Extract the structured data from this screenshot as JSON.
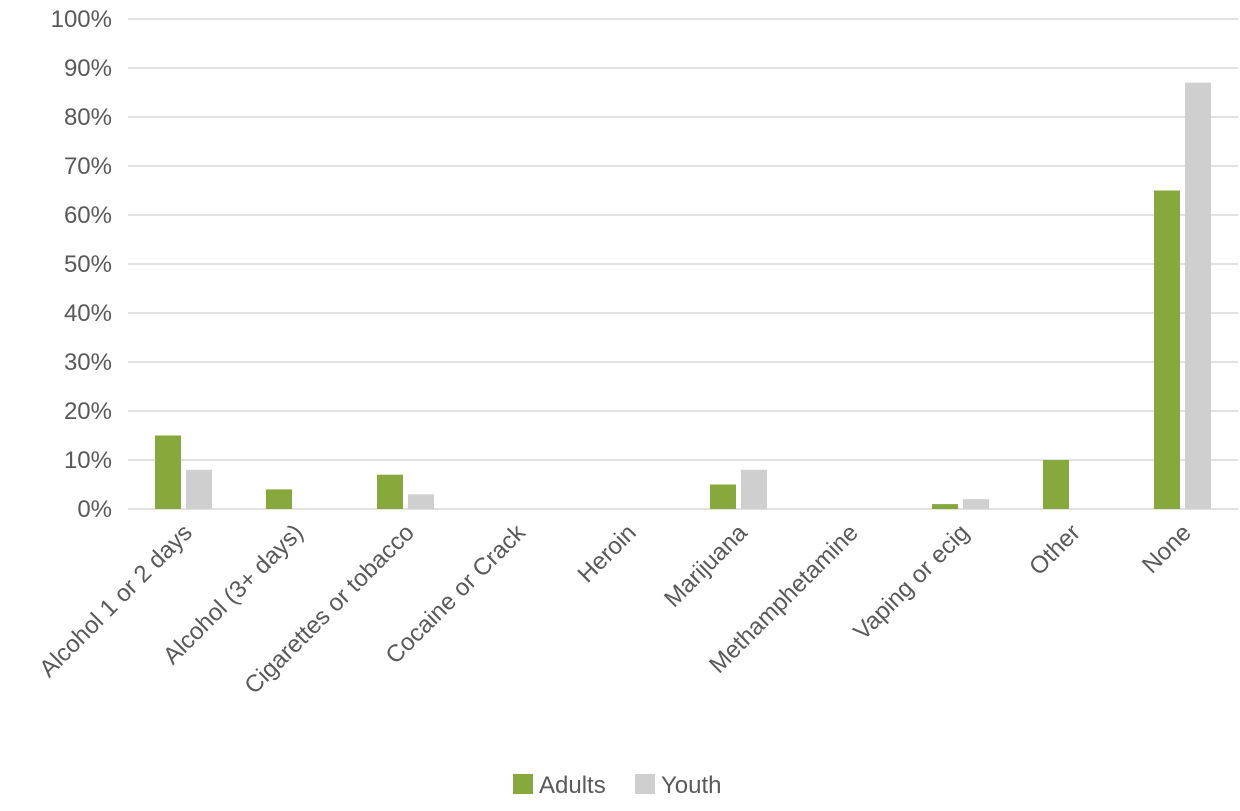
{
  "chart_data": {
    "type": "bar",
    "categories": [
      "Alcohol 1 or 2 days",
      "Alcohol (3+ days)",
      "Cigarettes or tobacco",
      "Cocaine or Crack",
      "Heroin",
      "Marijuana",
      "Methamphetamine",
      "Vaping or ecig",
      "Other",
      "None"
    ],
    "series": [
      {
        "name": "Adults",
        "color": "#86a83c",
        "values": [
          15,
          4,
          7,
          0,
          0,
          5,
          0,
          1,
          10,
          65
        ]
      },
      {
        "name": "Youth",
        "color": "#cfcfcf",
        "values": [
          8,
          0,
          3,
          0,
          0,
          8,
          0,
          2,
          0,
          87
        ]
      }
    ],
    "ylim": [
      0,
      100
    ],
    "yticks": [
      0,
      10,
      20,
      30,
      40,
      50,
      60,
      70,
      80,
      90,
      100
    ],
    "ytick_labels": [
      "0%",
      "10%",
      "20%",
      "30%",
      "40%",
      "50%",
      "60%",
      "70%",
      "80%",
      "90%",
      "100%"
    ],
    "grid": true,
    "legend": "bottom-center",
    "title": "",
    "xlabel": "",
    "ylabel": ""
  }
}
